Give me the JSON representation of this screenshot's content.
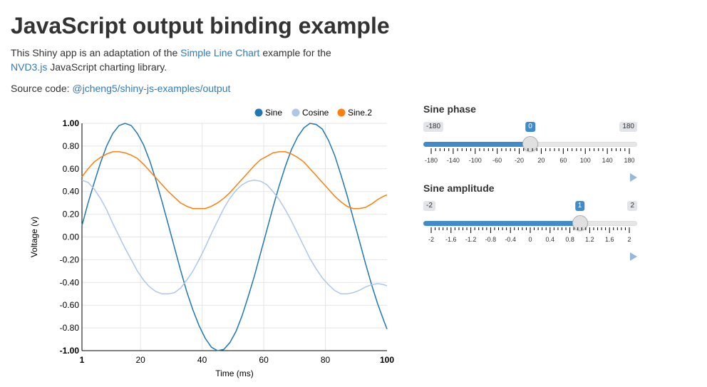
{
  "page": {
    "title": "JavaScript output binding example",
    "intro_prefix": "This Shiny app is an adaptation of the ",
    "intro_link1": "Simple Line Chart",
    "intro_mid": " example for the ",
    "intro_link2": "NVD3.js",
    "intro_suffix": " JavaScript charting library.",
    "source_prefix": "Source code: ",
    "source_link": "@jcheng5/shiny-js-examples/output"
  },
  "sliders": {
    "phase": {
      "label": "Sine phase",
      "min": -180,
      "max": 180,
      "value": 0,
      "min_label": "-180",
      "max_label": "180",
      "value_label": "0",
      "major_ticks": [
        "-180",
        "-140",
        "-100",
        "-60",
        "-20",
        "20",
        "60",
        "100",
        "140",
        "180"
      ]
    },
    "amplitude": {
      "label": "Sine amplitude",
      "min": -2,
      "max": 2,
      "value": 1,
      "min_label": "-2",
      "max_label": "2",
      "value_label": "1",
      "major_ticks": [
        "-2",
        "-1.6",
        "-1.2",
        "-0.8",
        "-0.4",
        "0",
        "0.4",
        "0.8",
        "1.2",
        "1.6",
        "2"
      ]
    }
  },
  "colors": {
    "sine": "#1f77b4",
    "cosine": "#aec7e8",
    "sine2": "#ff7f0e",
    "accent": "#428bca"
  },
  "chart_data": {
    "type": "line",
    "xlabel": "Time (ms)",
    "ylabel": "Voltage (v)",
    "xlim": [
      1,
      100
    ],
    "ylim": [
      -1,
      1
    ],
    "x_ticks": [
      "1",
      "20",
      "40",
      "60",
      "80",
      "100"
    ],
    "y_ticks": [
      "1.00",
      "0.80",
      "0.60",
      "0.40",
      "0.20",
      "0.00",
      "-0.20",
      "-0.40",
      "-0.60",
      "-0.80",
      "-1.00"
    ],
    "grid": true,
    "legend_position": "top-right",
    "x": [
      1,
      3,
      5,
      7,
      9,
      11,
      13,
      15,
      17,
      19,
      21,
      23,
      25,
      27,
      29,
      31,
      33,
      35,
      37,
      39,
      41,
      43,
      45,
      47,
      49,
      51,
      53,
      55,
      57,
      59,
      61,
      63,
      65,
      67,
      69,
      71,
      73,
      75,
      77,
      79,
      81,
      83,
      85,
      87,
      89,
      91,
      93,
      95,
      97,
      99,
      100
    ],
    "series": [
      {
        "name": "Sine",
        "values": [
          0.1,
          0.3,
          0.48,
          0.65,
          0.8,
          0.91,
          0.98,
          1.0,
          0.98,
          0.91,
          0.81,
          0.67,
          0.5,
          0.31,
          0.11,
          -0.09,
          -0.29,
          -0.48,
          -0.64,
          -0.78,
          -0.89,
          -0.97,
          -1.0,
          -0.99,
          -0.93,
          -0.83,
          -0.69,
          -0.52,
          -0.34,
          -0.14,
          0.06,
          0.26,
          0.45,
          0.62,
          0.77,
          0.88,
          0.96,
          1.0,
          0.99,
          0.95,
          0.85,
          0.72,
          0.55,
          0.37,
          0.17,
          -0.03,
          -0.23,
          -0.42,
          -0.59,
          -0.74,
          -0.81
        ]
      },
      {
        "name": "Cosine",
        "values": [
          0.5,
          0.48,
          0.42,
          0.34,
          0.24,
          0.12,
          0.01,
          -0.1,
          -0.2,
          -0.3,
          -0.38,
          -0.44,
          -0.48,
          -0.5,
          -0.5,
          -0.49,
          -0.45,
          -0.38,
          -0.3,
          -0.2,
          -0.09,
          0.03,
          0.14,
          0.25,
          0.34,
          0.41,
          0.46,
          0.49,
          0.5,
          0.49,
          0.46,
          0.4,
          0.33,
          0.24,
          0.14,
          0.03,
          -0.08,
          -0.19,
          -0.28,
          -0.36,
          -0.42,
          -0.47,
          -0.5,
          -0.5,
          -0.49,
          -0.47,
          -0.44,
          -0.42,
          -0.41,
          -0.42,
          -0.43
        ]
      },
      {
        "name": "Sine.2",
        "values": [
          0.53,
          0.6,
          0.66,
          0.7,
          0.73,
          0.75,
          0.75,
          0.74,
          0.72,
          0.69,
          0.64,
          0.58,
          0.52,
          0.46,
          0.4,
          0.35,
          0.3,
          0.27,
          0.25,
          0.25,
          0.25,
          0.27,
          0.3,
          0.34,
          0.39,
          0.45,
          0.51,
          0.57,
          0.63,
          0.68,
          0.71,
          0.74,
          0.75,
          0.75,
          0.73,
          0.7,
          0.66,
          0.6,
          0.54,
          0.48,
          0.42,
          0.36,
          0.31,
          0.27,
          0.25,
          0.25,
          0.26,
          0.29,
          0.33,
          0.36,
          0.37
        ]
      }
    ]
  }
}
